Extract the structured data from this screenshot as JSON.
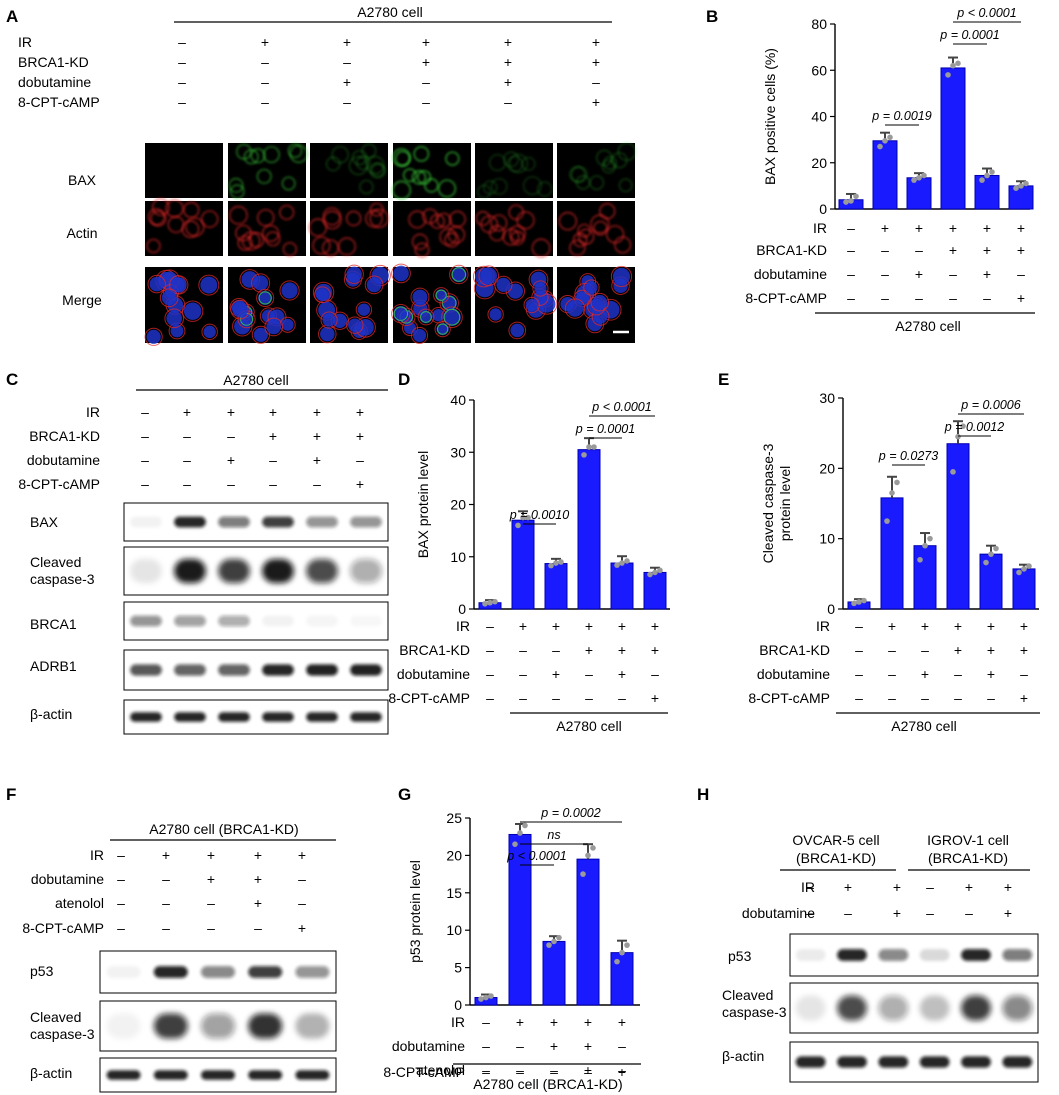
{
  "figure": {
    "colors": {
      "bar": "#1a1aff",
      "bar_stroke": "#0000b0",
      "dot": "#9a9a9a",
      "axis": "#000000",
      "micro_bg": "#000000",
      "green_signal": "#3bd23b",
      "red_signal": "#e02828",
      "blue_signal": "#1e32c8"
    },
    "panels": {
      "A": {
        "label": "A",
        "header": "A2780 cell",
        "rows": [
          "IR",
          "BRCA1-KD",
          "dobutamine",
          "8-CPT-cAMP"
        ],
        "signs": [
          [
            "–",
            "+",
            "+",
            "+",
            "+",
            "+"
          ],
          [
            "–",
            "–",
            "–",
            "+",
            "+",
            "+"
          ],
          [
            "–",
            "–",
            "+",
            "–",
            "+",
            "–"
          ],
          [
            "–",
            "–",
            "–",
            "–",
            "–",
            "+"
          ]
        ],
        "channels": [
          "BAX",
          "Actin",
          "Merge"
        ]
      },
      "B": {
        "label": "B",
        "rows": [
          "IR",
          "BRCA1-KD",
          "dobutamine",
          "8-CPT-cAMP"
        ],
        "signs": [
          [
            "–",
            "+",
            "+",
            "+",
            "+",
            "+"
          ],
          [
            "–",
            "–",
            "–",
            "+",
            "+",
            "+"
          ],
          [
            "–",
            "–",
            "+",
            "–",
            "+",
            "–"
          ],
          [
            "–",
            "–",
            "–",
            "–",
            "–",
            "+"
          ]
        ],
        "footer": "A2780 cell"
      },
      "C": {
        "label": "C",
        "header": "A2780 cell",
        "rows": [
          "IR",
          "BRCA1-KD",
          "dobutamine",
          "8-CPT-cAMP"
        ],
        "signs": [
          [
            "–",
            "+",
            "+",
            "+",
            "+",
            "+"
          ],
          [
            "–",
            "–",
            "–",
            "+",
            "+",
            "+"
          ],
          [
            "–",
            "–",
            "+",
            "–",
            "+",
            "–"
          ],
          [
            "–",
            "–",
            "–",
            "–",
            "–",
            "+"
          ]
        ],
        "blots": [
          "BAX",
          "Cleaved caspase-3",
          "BRCA1",
          "ADRB1",
          "β-actin"
        ]
      },
      "D": {
        "label": "D",
        "rows": [
          "IR",
          "BRCA1-KD",
          "dobutamine",
          "8-CPT-cAMP"
        ],
        "signs": [
          [
            "–",
            "+",
            "+",
            "+",
            "+",
            "+"
          ],
          [
            "–",
            "–",
            "–",
            "+",
            "+",
            "+"
          ],
          [
            "–",
            "–",
            "+",
            "–",
            "+",
            "–"
          ],
          [
            "–",
            "–",
            "–",
            "–",
            "–",
            "+"
          ]
        ],
        "footer": "A2780 cell"
      },
      "E": {
        "label": "E",
        "rows": [
          "IR",
          "BRCA1-KD",
          "dobutamine",
          "8-CPT-cAMP"
        ],
        "signs": [
          [
            "–",
            "+",
            "+",
            "+",
            "+",
            "+"
          ],
          [
            "–",
            "–",
            "–",
            "+",
            "+",
            "+"
          ],
          [
            "–",
            "–",
            "+",
            "–",
            "+",
            "–"
          ],
          [
            "–",
            "–",
            "–",
            "–",
            "–",
            "+"
          ]
        ],
        "footer": "A2780 cell"
      },
      "F": {
        "label": "F",
        "header": "A2780 cell (BRCA1-KD)",
        "rows": [
          "IR",
          "dobutamine",
          "atenolol",
          "8-CPT-cAMP"
        ],
        "signs": [
          [
            "–",
            "+",
            "+",
            "+",
            "+"
          ],
          [
            "–",
            "–",
            "+",
            "+",
            "–"
          ],
          [
            "–",
            "–",
            "–",
            "+",
            "–"
          ],
          [
            "–",
            "–",
            "–",
            "–",
            "+"
          ]
        ],
        "blots": [
          "p53",
          "Cleaved caspase-3",
          "β-actin"
        ]
      },
      "G": {
        "label": "G",
        "rows": [
          "IR",
          "dobutamine",
          "atenolol",
          "8-CPT-cAMP"
        ],
        "signs": [
          [
            "–",
            "+",
            "+",
            "+",
            "+"
          ],
          [
            "–",
            "–",
            "+",
            "+",
            "–"
          ],
          [
            "–",
            "–",
            "–",
            "+",
            "–"
          ],
          [
            "–",
            "–",
            "–",
            "–",
            "+"
          ]
        ],
        "footer": "A2780 cell (BRCA1-KD)"
      },
      "H": {
        "label": "H",
        "groups": [
          "OVCAR-5 cell (BRCA1-KD)",
          "IGROV-1 cell (BRCA1-KD)"
        ],
        "rows": [
          "IR",
          "dobutamine"
        ],
        "signs": [
          [
            "–",
            "+",
            "+",
            "–",
            "+",
            "+"
          ],
          [
            "–",
            "–",
            "+",
            "–",
            "–",
            "+"
          ]
        ],
        "blots": [
          "p53",
          "Cleaved caspase-3",
          "β-actin"
        ]
      }
    }
  },
  "chart_data": [
    {
      "panel": "B",
      "type": "bar",
      "ylabel": "BAX positive  cells (%)",
      "ylim": [
        0,
        80
      ],
      "yticks": [
        0,
        20,
        40,
        60,
        80
      ],
      "series": [
        {
          "values": [
            4,
            29.5,
            13.5,
            61,
            14.5,
            10
          ],
          "errors": [
            2.5,
            3.5,
            2,
            4.5,
            3,
            2
          ]
        }
      ],
      "points": [
        [
          3,
          3.5,
          5.5
        ],
        [
          27,
          29.5,
          31
        ],
        [
          12.5,
          13.5,
          14.5
        ],
        [
          58,
          62,
          63
        ],
        [
          12.5,
          14.5,
          16
        ],
        [
          9,
          10,
          11
        ]
      ],
      "annotations": [
        {
          "text": "p = 0.0019",
          "from": 1,
          "to": 2
        },
        {
          "text": "p = 0.0001",
          "from": 3,
          "to": 4
        },
        {
          "text": "p < 0.0001",
          "from": 3,
          "to": 5
        }
      ]
    },
    {
      "panel": "D",
      "type": "bar",
      "ylabel": "BAX protein level",
      "ylim": [
        0,
        40
      ],
      "yticks": [
        0,
        10,
        20,
        30,
        40
      ],
      "series": [
        {
          "values": [
            1.2,
            17,
            8.7,
            30.5,
            8.8,
            7
          ],
          "errors": [
            0.5,
            1.7,
            0.9,
            2.2,
            1.3,
            0.9
          ]
        }
      ],
      "points": [
        [
          1,
          1.2,
          1.4
        ],
        [
          16,
          17.5,
          17.5
        ],
        [
          8.3,
          8.8,
          9
        ],
        [
          29.5,
          31,
          31
        ],
        [
          8.4,
          8.8,
          9.2
        ],
        [
          6.6,
          7,
          7.4
        ]
      ],
      "annotations": [
        {
          "text": "p = 0.0010",
          "from": 1,
          "to": 2
        },
        {
          "text": "p = 0.0001",
          "from": 3,
          "to": 4
        },
        {
          "text": "p < 0.0001",
          "from": 3,
          "to": 5
        }
      ]
    },
    {
      "panel": "E",
      "type": "bar",
      "ylabel": "Cleaved caspase-3",
      "ylabel2": "protein level",
      "ylim": [
        0,
        30
      ],
      "yticks": [
        0,
        10,
        20,
        30
      ],
      "series": [
        {
          "values": [
            1,
            15.8,
            9,
            23.5,
            7.8,
            5.7
          ],
          "errors": [
            0.4,
            3,
            1.8,
            3.2,
            1.2,
            0.6
          ]
        }
      ],
      "points": [
        [
          0.8,
          1,
          1.2
        ],
        [
          12.5,
          16.5,
          18
        ],
        [
          7,
          9,
          10
        ],
        [
          19.5,
          24.5,
          26
        ],
        [
          6.6,
          7.8,
          8.6
        ],
        [
          5.2,
          5.7,
          6.1
        ]
      ],
      "annotations": [
        {
          "text": "p = 0.0273",
          "from": 1,
          "to": 2
        },
        {
          "text": "p = 0.0012",
          "from": 3,
          "to": 4
        },
        {
          "text": "p = 0.0006",
          "from": 3,
          "to": 5
        }
      ]
    },
    {
      "panel": "G",
      "type": "bar",
      "ylabel": "p53 protein level",
      "ylim": [
        0,
        25
      ],
      "yticks": [
        0,
        5,
        10,
        15,
        20,
        25
      ],
      "series": [
        {
          "values": [
            1,
            22.8,
            8.5,
            19.5,
            7
          ],
          "errors": [
            0.4,
            1.4,
            0.7,
            2,
            1.6
          ]
        }
      ],
      "points": [
        [
          0.8,
          1,
          1.2
        ],
        [
          21.5,
          23,
          24
        ],
        [
          8,
          8.5,
          9
        ],
        [
          17.5,
          20,
          21
        ],
        [
          5.8,
          7,
          8
        ]
      ],
      "annotations": [
        {
          "text": "p < 0.0001",
          "from": 1,
          "to": 2
        },
        {
          "text": "ns",
          "from": 1,
          "to": 3
        },
        {
          "text": "p = 0.0002",
          "from": 1,
          "to": 4
        }
      ]
    }
  ]
}
